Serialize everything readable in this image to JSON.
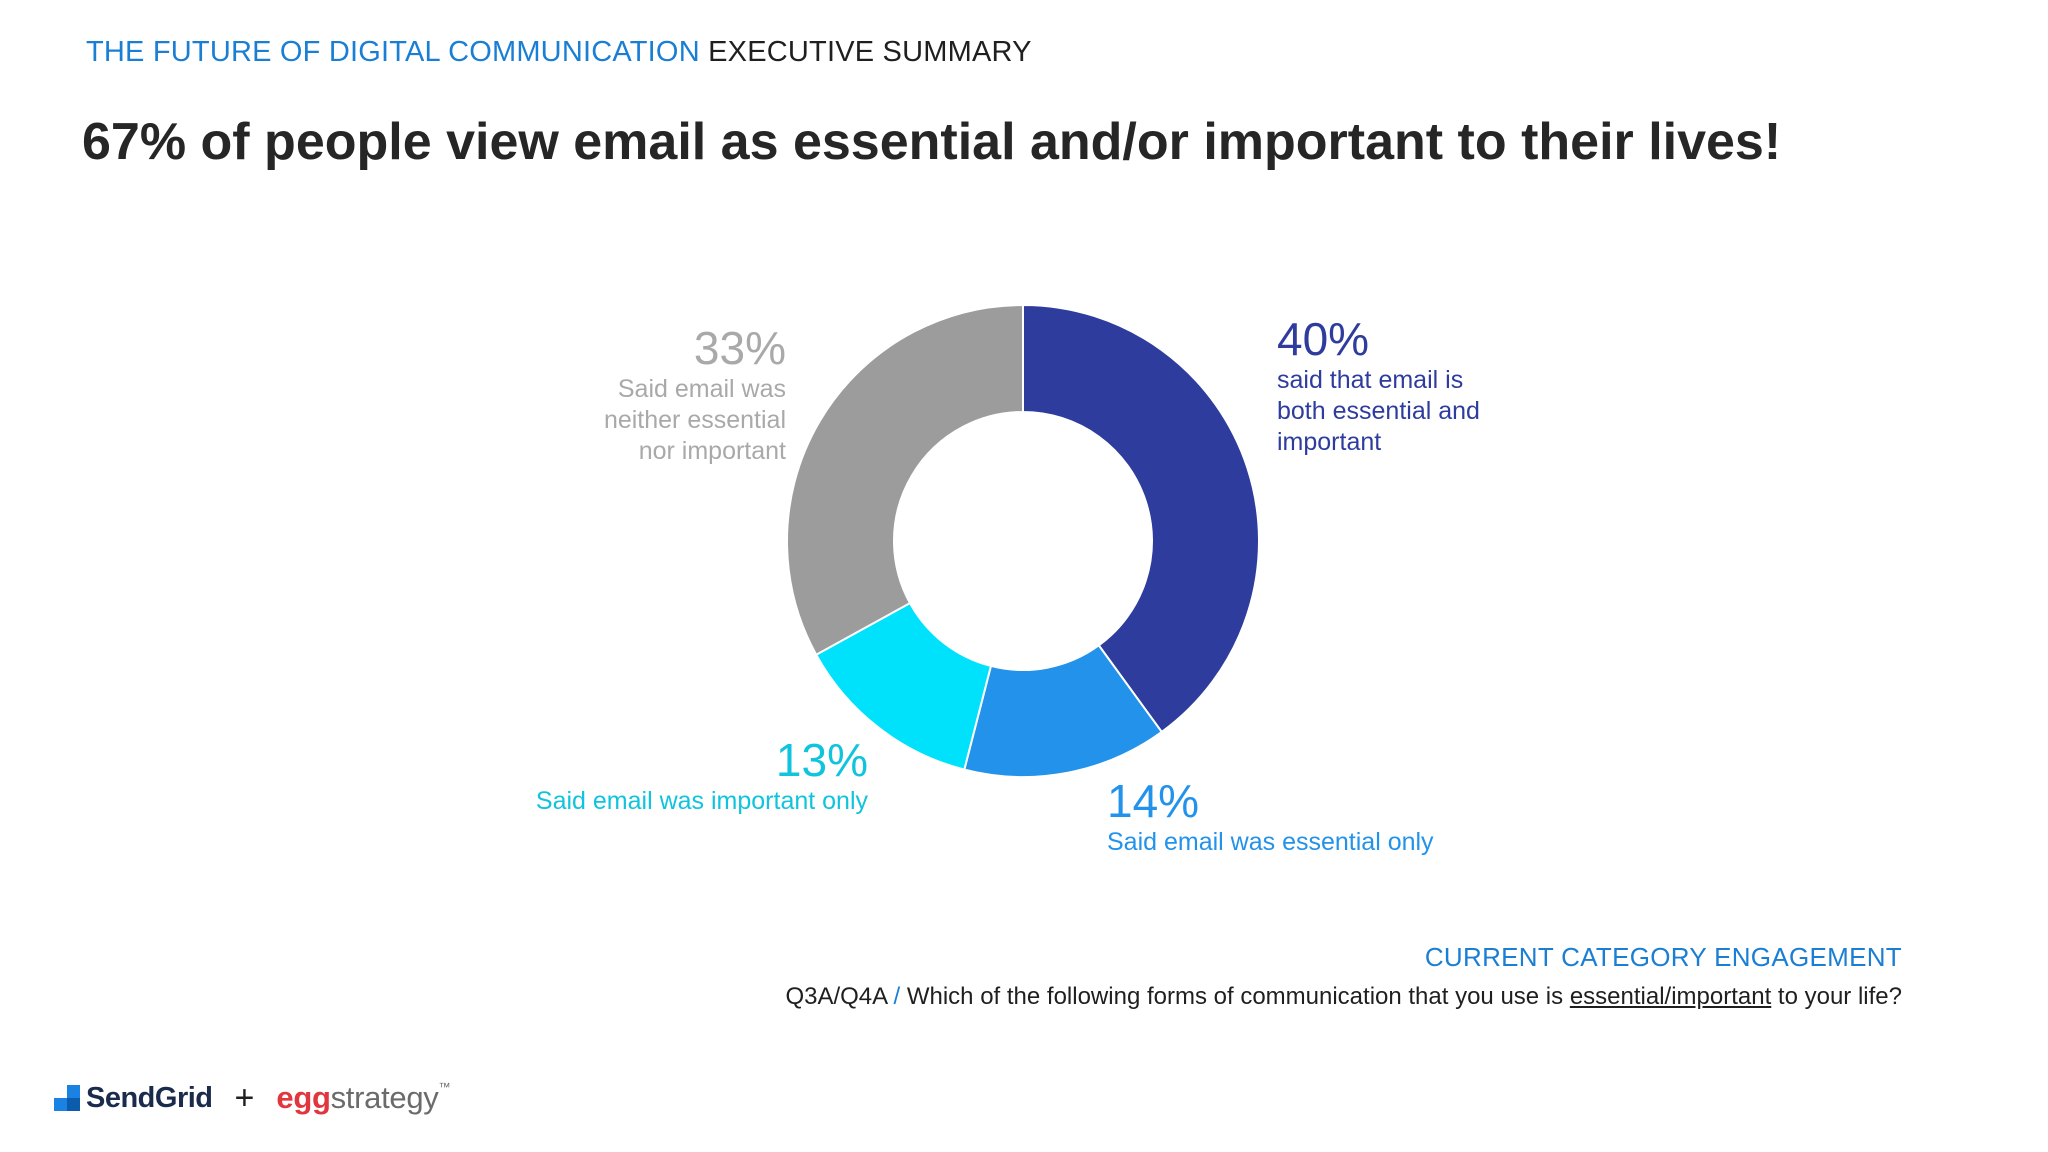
{
  "header": {
    "topic": "THE FUTURE OF DIGITAL COMMUNICATION",
    "section": "EXECUTIVE SUMMARY"
  },
  "headline": "67% of people view email as essential and/or important to their lives!",
  "chart_data": {
    "type": "pie",
    "donut": true,
    "title": "",
    "slices": [
      {
        "label_pct": "40%",
        "desc_lines": [
          "said that email is",
          "both essential and",
          "important"
        ],
        "value": 40,
        "color": "#2e3c9e"
      },
      {
        "label_pct": "14%",
        "desc_lines": [
          "Said email was essential only"
        ],
        "value": 14,
        "color": "#2292ea"
      },
      {
        "label_pct": "13%",
        "desc_lines": [
          "Said email was important only"
        ],
        "value": 13,
        "color": "#00e2fb"
      },
      {
        "label_pct": "33%",
        "desc_lines": [
          "Said email was",
          "neither essential",
          "nor important"
        ],
        "value": 33,
        "color": "#9c9c9c"
      }
    ],
    "label_colors": [
      "#2e3c9e",
      "#2292ea",
      "#10c4dd",
      "#a9a9a9"
    ]
  },
  "footnote": {
    "section": "CURRENT CATEGORY ENGAGEMENT",
    "q_code": "Q3A/Q4A",
    "slash": "/",
    "q_text_before": "Which of the following forms of communication that you use is",
    "q_text_underlined": "essential/important",
    "q_text_after": "to your life?"
  },
  "logos": {
    "sendgrid": "SendGrid",
    "plus": "+",
    "egg_a": "egg",
    "egg_b": "strategy",
    "tm": "™"
  }
}
